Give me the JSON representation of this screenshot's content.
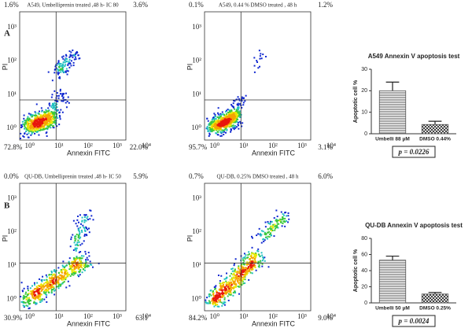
{
  "panels": [
    "A",
    "B"
  ],
  "chart_data": [
    {
      "type": "flow",
      "title": "A549, Umbelliprenin treated ,48 h- IC 80",
      "xlabel": "Annexin FITC",
      "ylabel": "PI",
      "log_scale": true,
      "xlim": [
        0.45,
        10000
      ],
      "ylim": [
        0.45,
        10000
      ],
      "xticks": [
        {
          "value": 1,
          "label": "10⁰"
        },
        {
          "value": 10,
          "label": "10¹"
        },
        {
          "value": 100,
          "label": "10²"
        },
        {
          "value": 1000,
          "label": "10³"
        },
        {
          "value": 10000,
          "label": "10⁴"
        }
      ],
      "yticks": [
        {
          "value": 1,
          "label": "10⁰"
        },
        {
          "value": 10,
          "label": "10¹"
        },
        {
          "value": 100,
          "label": "10²"
        },
        {
          "value": 1000,
          "label": "10³"
        },
        {
          "value": 10000,
          "label": "10⁴"
        }
      ],
      "gate": [
        8,
        7
      ],
      "quadrant_labels": [
        "1.6%",
        "3.6%",
        "72.8%",
        "22.0%"
      ]
    },
    {
      "type": "flow",
      "title": "A549,  0.44 % DMSO treated , 48 h",
      "xlabel": "Annexin FITC",
      "ylabel": "PI",
      "log_scale": true,
      "xlim": [
        0.45,
        10000
      ],
      "ylim": [
        0.45,
        10000
      ],
      "xticks": [
        {
          "value": 1,
          "label": "10⁰"
        },
        {
          "value": 10,
          "label": "10¹"
        },
        {
          "value": 100,
          "label": "10²"
        },
        {
          "value": 1000,
          "label": "10³"
        },
        {
          "value": 10000,
          "label": "10⁴"
        }
      ],
      "yticks": [
        {
          "value": 1,
          "label": "10⁰"
        },
        {
          "value": 10,
          "label": "10¹"
        },
        {
          "value": 100,
          "label": "10²"
        },
        {
          "value": 1000,
          "label": "10³"
        },
        {
          "value": 10000,
          "label": "10⁴"
        }
      ],
      "gate": [
        8,
        7
      ],
      "quadrant_labels": [
        "0.1%",
        "1.2%",
        "95.7%",
        "3.1%"
      ]
    },
    {
      "type": "flow",
      "title": "QU-DB, Umbelliprenin treated ,48 h- IC 50",
      "xlabel": "Annexin FITC",
      "ylabel": "PI",
      "log_scale": true,
      "xlim": [
        0.45,
        10000
      ],
      "ylim": [
        0.45,
        10000
      ],
      "xticks": [
        {
          "value": 1,
          "label": "10⁰"
        },
        {
          "value": 10,
          "label": "10¹"
        },
        {
          "value": 100,
          "label": "10²"
        },
        {
          "value": 1000,
          "label": "10³"
        },
        {
          "value": 10000,
          "label": "10⁴"
        }
      ],
      "yticks": [
        {
          "value": 1,
          "label": "10⁰"
        },
        {
          "value": 10,
          "label": "10¹"
        },
        {
          "value": 100,
          "label": "10²"
        },
        {
          "value": 1000,
          "label": "10³"
        },
        {
          "value": 10000,
          "label": "10⁴"
        }
      ],
      "gate": [
        8,
        12
      ],
      "quadrant_labels": [
        "0.0%",
        "5.9%",
        "30.9%",
        "63.1"
      ]
    },
    {
      "type": "flow",
      "title": "QU-DB, 0.25% DMSO treated , 48 h",
      "xlabel": "Annexin FITC",
      "ylabel": "PI",
      "log_scale": true,
      "xlim": [
        0.45,
        10000
      ],
      "ylim": [
        0.45,
        10000
      ],
      "xticks": [
        {
          "value": 1,
          "label": "10⁰"
        },
        {
          "value": 10,
          "label": "10¹"
        },
        {
          "value": 100,
          "label": "10²"
        },
        {
          "value": 1000,
          "label": "10³"
        },
        {
          "value": 10000,
          "label": "10⁴"
        }
      ],
      "yticks": [
        {
          "value": 1,
          "label": "10⁰"
        },
        {
          "value": 10,
          "label": "10¹"
        },
        {
          "value": 100,
          "label": "10²"
        },
        {
          "value": 1000,
          "label": "10³"
        },
        {
          "value": 10000,
          "label": "10⁴"
        }
      ],
      "gate": [
        8,
        12
      ],
      "quadrant_labels": [
        "0.7%",
        "6.0%",
        "84.2%",
        "9.0%"
      ]
    },
    {
      "type": "bar",
      "title": "A549 Annexin V apoptosis test",
      "ylabel": "Apoptotic cell %",
      "categories": [
        "Umbelli 88 μM",
        "DMSO 0.44%"
      ],
      "values": [
        20,
        4.3
      ],
      "errors": [
        4,
        1.5
      ],
      "hatches": [
        "horizontal",
        "checker"
      ],
      "color": "#555555",
      "ylim": [
        0,
        30
      ],
      "yticks": [
        0,
        10,
        20,
        30
      ],
      "annotation": "p = 0.0226"
    },
    {
      "type": "bar",
      "title": "QU-DB Annexin V apoptosis test",
      "ylabel": "Apoptotic cell %",
      "categories": [
        "Umbelli 50 μM",
        "DMSO 0.25%"
      ],
      "values": [
        53,
        11
      ],
      "errors": [
        5,
        2
      ],
      "hatches": [
        "horizontal",
        "checker"
      ],
      "color": "#555555",
      "ylim": [
        0,
        80
      ],
      "yticks": [
        0,
        20,
        40,
        60,
        80
      ],
      "annotation": "p = 0.0024"
    }
  ]
}
